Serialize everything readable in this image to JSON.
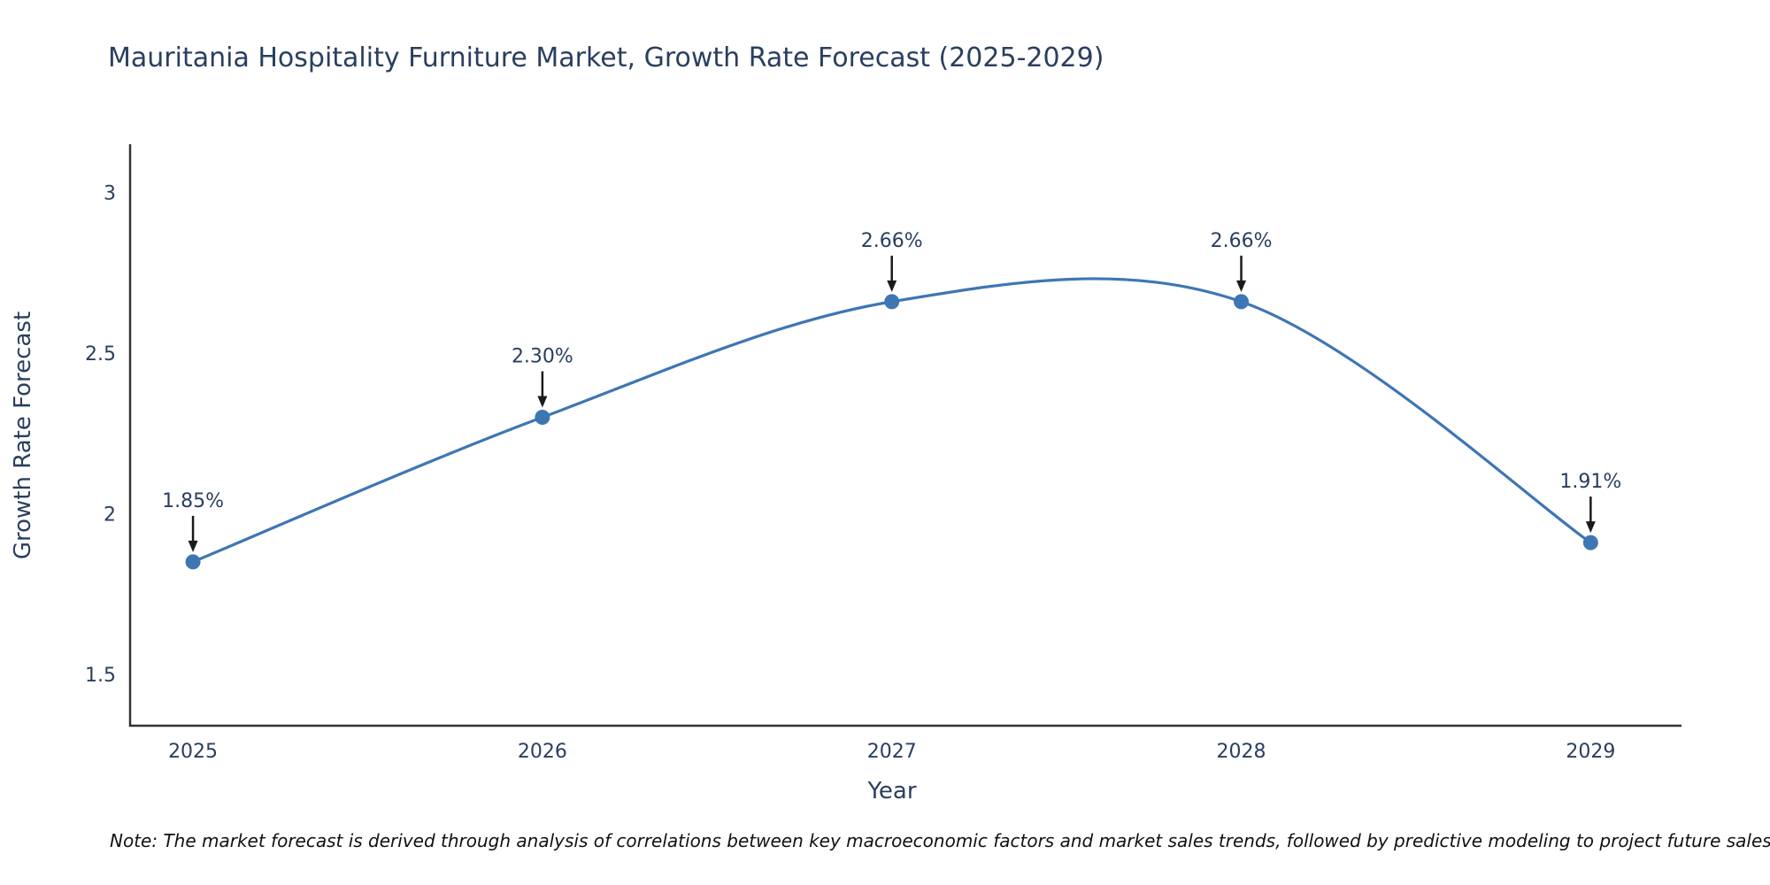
{
  "page": {
    "title": "Mauritania Hospitality Furniture Market, Growth Rate Forecast (2025-2029)",
    "note": "Note: The market forecast is derived through analysis of correlations between key macroeconomic factors and market sales trends, followed by predictive modeling to project future sales"
  },
  "chart_data": {
    "type": "line",
    "title": "Mauritania Hospitality Furniture Market, Growth Rate Forecast (2025-2029)",
    "xlabel": "Year",
    "ylabel": "Growth Rate Forecast",
    "x": [
      2025,
      2026,
      2027,
      2028,
      2029
    ],
    "values": [
      1.85,
      2.3,
      2.66,
      2.66,
      1.91
    ],
    "point_labels": [
      "1.85%",
      "2.30%",
      "2.66%",
      "2.66%",
      "1.91%"
    ],
    "xticks": [
      2025,
      2026,
      2027,
      2028,
      2029
    ],
    "yticks": [
      1.5,
      2,
      2.5,
      3
    ],
    "xlim": [
      2024.82,
      2029.26
    ],
    "ylim": [
      1.34,
      3.15
    ],
    "line_shape": "spline",
    "grid": false,
    "legend": "none",
    "line_color": "#3e76b4",
    "marker_color": "#3e76b4",
    "axis_color": "#333333",
    "text_color": "#2a3f5f",
    "annotation_arrow_color": "#1a1a1a"
  }
}
